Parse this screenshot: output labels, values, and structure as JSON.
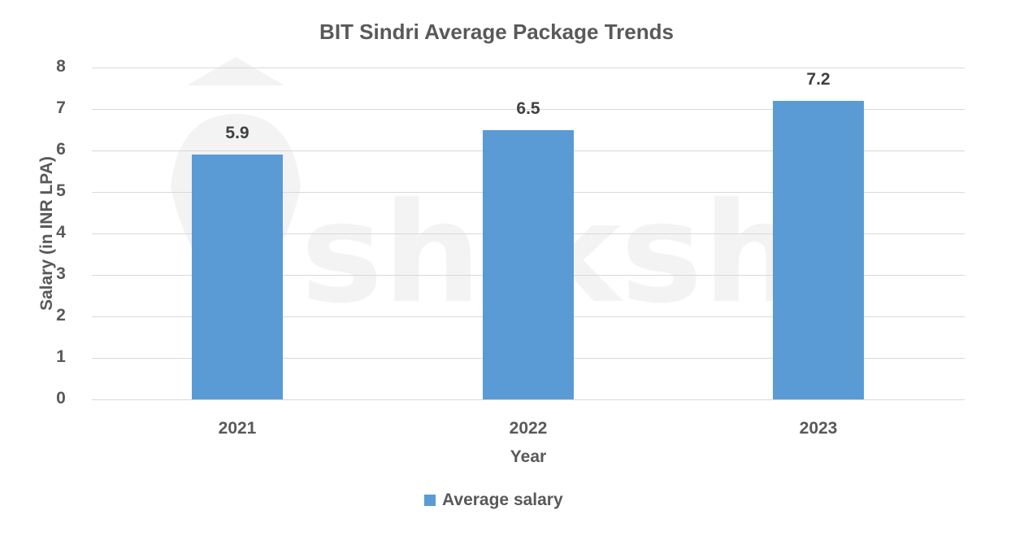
{
  "chart_data": {
    "type": "bar",
    "title": "BIT Sindri Average Package Trends",
    "xlabel": "Year",
    "ylabel": "Salary (in INR LPA)",
    "categories": [
      "2021",
      "2022",
      "2023"
    ],
    "series": [
      {
        "name": "Average salary",
        "values": [
          5.9,
          6.5,
          7.2
        ],
        "color": "#5b9bd5"
      }
    ],
    "value_labels": [
      "5.9",
      "6.5",
      "7.2"
    ],
    "ylim": [
      0,
      8
    ],
    "yticks": [
      "0",
      "1",
      "2",
      "3",
      "4",
      "5",
      "6",
      "7",
      "8"
    ],
    "grid": true,
    "legend_position": "bottom",
    "watermark": "shiksha"
  }
}
